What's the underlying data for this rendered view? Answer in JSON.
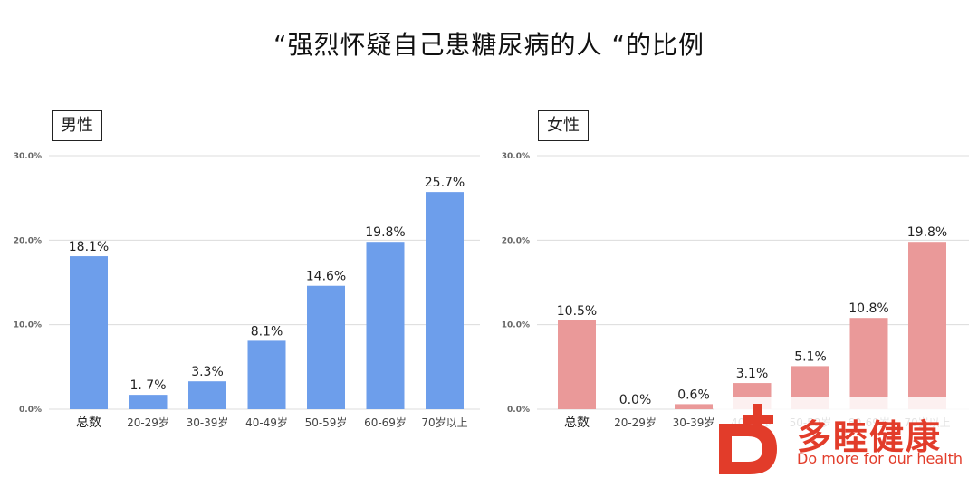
{
  "title": "“强烈怀疑自己患糖尿病的人 “的比例",
  "chart_data": [
    {
      "type": "bar",
      "panel_label": "男性",
      "categories": [
        "总数",
        "20-29岁",
        "30-39岁",
        "40-49岁",
        "50-59岁",
        "60-69岁",
        "70岁以上"
      ],
      "values": [
        18.1,
        1.7,
        3.3,
        8.1,
        14.6,
        19.8,
        25.7
      ],
      "data_labels": [
        "18.1%",
        "1. 7%",
        "3.3%",
        "8.1%",
        "14.6%",
        "19.8%",
        "25.7%"
      ],
      "y_ticks": [
        "0.0%",
        "10.0%",
        "20.0%",
        "30.0%"
      ],
      "ylim": [
        0,
        30
      ],
      "color": "#6d9eeb",
      "grid": true
    },
    {
      "type": "bar",
      "panel_label": "女性",
      "categories": [
        "总数",
        "20-29岁",
        "30-39岁",
        "40-49岁",
        "50-59岁",
        "60-69岁",
        "70岁以上"
      ],
      "values": [
        10.5,
        0.0,
        0.6,
        3.1,
        5.1,
        10.8,
        19.8
      ],
      "data_labels": [
        "10.5%",
        "0.0%",
        "0.6%",
        "3.1%",
        "5.1%",
        "10.8%",
        "19.8%"
      ],
      "y_ticks": [
        "0.0%",
        "10.0%",
        "20.0%",
        "30.0%"
      ],
      "ylim": [
        0,
        30
      ],
      "color": "#ea9999",
      "grid": true
    }
  ],
  "logo": {
    "brand": "多睦健康",
    "tagline": "Do more for our health",
    "color": "#e23c2a"
  }
}
